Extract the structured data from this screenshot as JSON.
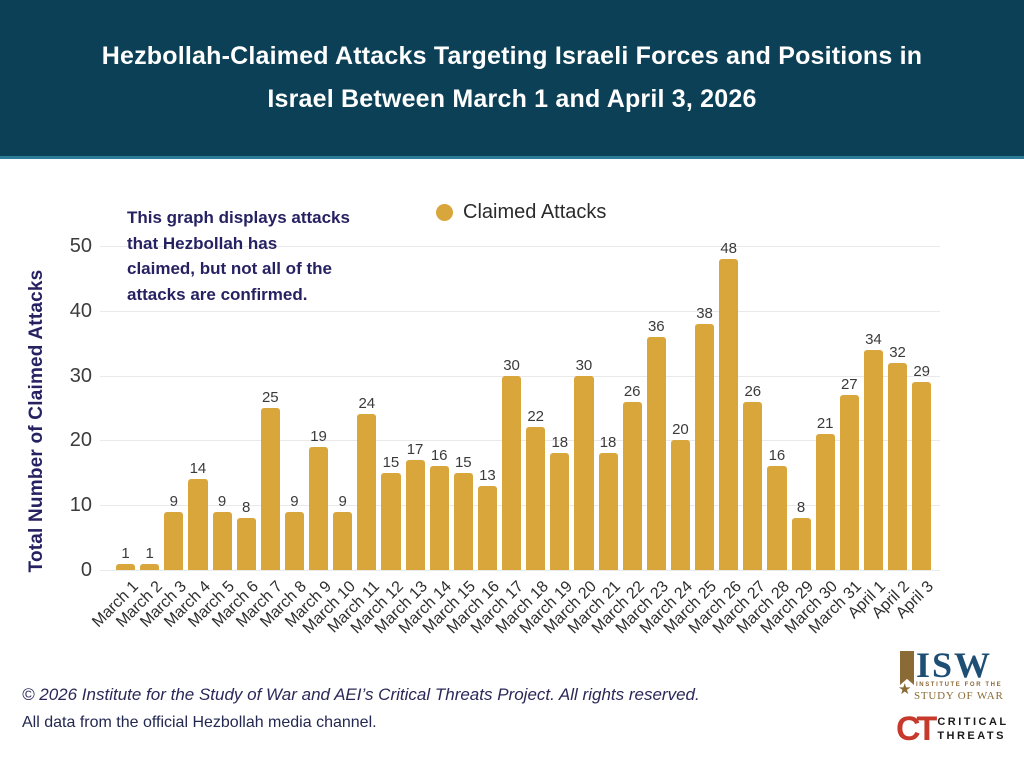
{
  "header": {
    "title_line1": "Hezbollah-Claimed Attacks Targeting Israeli Forces and Positions in",
    "title_line2": "Israel Between March 1 and April 3, 2026",
    "bg_color": "#0B4056"
  },
  "annotation": {
    "lines": [
      "This graph displays attacks",
      "that Hezbollah has",
      "claimed, but not all of the",
      "attacks are confirmed."
    ]
  },
  "legend": {
    "label": "Claimed Attacks",
    "marker_color": "#D9A63C"
  },
  "chart_data": {
    "type": "bar",
    "title": "Hezbollah-Claimed Attacks Targeting Israeli Forces and Positions in Israel Between March 1 and April 3, 2026",
    "categories": [
      "March 1",
      "March 2",
      "March 3",
      "March 4",
      "March 5",
      "March 6",
      "March 7",
      "March 8",
      "March 9",
      "March 10",
      "March 11",
      "March 12",
      "March 13",
      "March 14",
      "March 15",
      "March 16",
      "March 17",
      "March 18",
      "March 19",
      "March 20",
      "March 21",
      "March 22",
      "March 23",
      "March 24",
      "March 25",
      "March 26",
      "March 27",
      "March 28",
      "March 29",
      "March 30",
      "March 31",
      "April 1",
      "April 2",
      "April 3"
    ],
    "values": [
      1,
      1,
      9,
      14,
      9,
      8,
      25,
      9,
      19,
      9,
      24,
      15,
      17,
      16,
      15,
      13,
      30,
      22,
      18,
      30,
      18,
      26,
      36,
      20,
      38,
      48,
      26,
      16,
      8,
      21,
      27,
      34,
      32,
      29
    ],
    "xlabel": "",
    "ylabel": "Total Number of Claimed Attacks",
    "ylim": [
      0,
      50
    ],
    "yticks": [
      0,
      10,
      20,
      30,
      40,
      50
    ],
    "bar_color": "#D9A63C",
    "grid": true,
    "legend_entries": [
      "Claimed Attacks"
    ],
    "legend_position": "top-center"
  },
  "footer": {
    "copyright": "© 2026 Institute for the Study of War and AEI’s Critical Threats Project. All rights reserved.",
    "source": "All data from the official Hezbollah media channel."
  },
  "logos": {
    "isw": {
      "acronym": "ISW",
      "sub_line1": "INSTITUTE FOR THE",
      "sub_line2": "STUDY OF WAR",
      "star": "★",
      "blue": "#1D4E74",
      "gold": "#8A6A35"
    },
    "ct": {
      "acronym": "CT",
      "word1": "CRITICAL",
      "word2": "THREATS",
      "red": "#C6392B"
    }
  }
}
